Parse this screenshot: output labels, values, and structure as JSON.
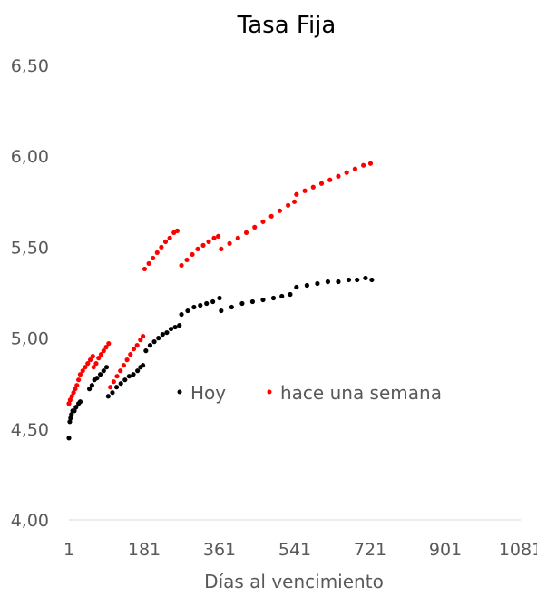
{
  "chart_data": {
    "type": "scatter",
    "title": "Tasa Fija",
    "xlabel": "Días al vencimiento",
    "ylabel": "",
    "xlim": [
      1,
      1081
    ],
    "ylim": [
      4.0,
      6.5
    ],
    "x_ticks": [
      1,
      181,
      361,
      541,
      721,
      901,
      1081
    ],
    "y_ticks": [
      4.0,
      4.5,
      5.0,
      5.5,
      6.0,
      6.5
    ],
    "x_tick_labels": [
      "1",
      "181",
      "361",
      "541",
      "721",
      "901",
      "1081"
    ],
    "y_tick_labels": [
      "4,00",
      "4,50",
      "5,00",
      "5,50",
      "6,00",
      "6,50"
    ],
    "grid": false,
    "legend_position": "center",
    "series": [
      {
        "name": "Hoy",
        "color": "#000000",
        "points": [
          [
            1,
            4.45
          ],
          [
            3,
            4.54
          ],
          [
            5,
            4.56
          ],
          [
            7,
            4.58
          ],
          [
            10,
            4.6
          ],
          [
            14,
            4.6
          ],
          [
            18,
            4.62
          ],
          [
            24,
            4.64
          ],
          [
            28,
            4.65
          ],
          [
            50,
            4.72
          ],
          [
            56,
            4.74
          ],
          [
            62,
            4.77
          ],
          [
            68,
            4.78
          ],
          [
            76,
            4.8
          ],
          [
            84,
            4.82
          ],
          [
            91,
            4.84
          ],
          [
            95,
            4.68
          ],
          [
            105,
            4.7
          ],
          [
            115,
            4.73
          ],
          [
            125,
            4.75
          ],
          [
            135,
            4.77
          ],
          [
            145,
            4.79
          ],
          [
            155,
            4.8
          ],
          [
            165,
            4.82
          ],
          [
            172,
            4.84
          ],
          [
            178,
            4.85
          ],
          [
            185,
            4.93
          ],
          [
            195,
            4.96
          ],
          [
            205,
            4.98
          ],
          [
            215,
            5.0
          ],
          [
            225,
            5.02
          ],
          [
            235,
            5.03
          ],
          [
            245,
            5.05
          ],
          [
            255,
            5.06
          ],
          [
            265,
            5.07
          ],
          [
            270,
            5.13
          ],
          [
            285,
            5.15
          ],
          [
            300,
            5.17
          ],
          [
            315,
            5.18
          ],
          [
            330,
            5.19
          ],
          [
            345,
            5.2
          ],
          [
            361,
            5.22
          ],
          [
            365,
            5.15
          ],
          [
            390,
            5.17
          ],
          [
            415,
            5.19
          ],
          [
            440,
            5.2
          ],
          [
            465,
            5.21
          ],
          [
            490,
            5.22
          ],
          [
            510,
            5.23
          ],
          [
            530,
            5.24
          ],
          [
            545,
            5.28
          ],
          [
            570,
            5.29
          ],
          [
            595,
            5.3
          ],
          [
            620,
            5.31
          ],
          [
            645,
            5.31
          ],
          [
            670,
            5.32
          ],
          [
            690,
            5.32
          ],
          [
            710,
            5.33
          ],
          [
            725,
            5.32
          ]
        ]
      },
      {
        "name": "hace una semana",
        "color": "#ff0000",
        "points": [
          [
            1,
            4.64
          ],
          [
            4,
            4.66
          ],
          [
            8,
            4.68
          ],
          [
            12,
            4.7
          ],
          [
            16,
            4.72
          ],
          [
            20,
            4.74
          ],
          [
            24,
            4.77
          ],
          [
            28,
            4.8
          ],
          [
            34,
            4.82
          ],
          [
            40,
            4.84
          ],
          [
            46,
            4.86
          ],
          [
            52,
            4.88
          ],
          [
            58,
            4.9
          ],
          [
            60,
            4.84
          ],
          [
            66,
            4.86
          ],
          [
            72,
            4.89
          ],
          [
            78,
            4.91
          ],
          [
            84,
            4.93
          ],
          [
            90,
            4.95
          ],
          [
            96,
            4.97
          ],
          [
            100,
            4.73
          ],
          [
            108,
            4.76
          ],
          [
            116,
            4.79
          ],
          [
            124,
            4.82
          ],
          [
            132,
            4.85
          ],
          [
            140,
            4.88
          ],
          [
            148,
            4.91
          ],
          [
            156,
            4.94
          ],
          [
            164,
            4.96
          ],
          [
            172,
            4.99
          ],
          [
            178,
            5.01
          ],
          [
            182,
            5.38
          ],
          [
            192,
            5.41
          ],
          [
            202,
            5.44
          ],
          [
            212,
            5.47
          ],
          [
            222,
            5.5
          ],
          [
            232,
            5.53
          ],
          [
            242,
            5.55
          ],
          [
            252,
            5.58
          ],
          [
            260,
            5.59
          ],
          [
            270,
            5.4
          ],
          [
            283,
            5.43
          ],
          [
            296,
            5.46
          ],
          [
            309,
            5.49
          ],
          [
            322,
            5.51
          ],
          [
            335,
            5.53
          ],
          [
            348,
            5.55
          ],
          [
            358,
            5.56
          ],
          [
            365,
            5.49
          ],
          [
            385,
            5.52
          ],
          [
            405,
            5.55
          ],
          [
            425,
            5.58
          ],
          [
            445,
            5.61
          ],
          [
            465,
            5.64
          ],
          [
            485,
            5.67
          ],
          [
            505,
            5.7
          ],
          [
            525,
            5.73
          ],
          [
            540,
            5.75
          ],
          [
            545,
            5.79
          ],
          [
            565,
            5.81
          ],
          [
            585,
            5.83
          ],
          [
            605,
            5.85
          ],
          [
            625,
            5.87
          ],
          [
            645,
            5.89
          ],
          [
            665,
            5.91
          ],
          [
            685,
            5.93
          ],
          [
            705,
            5.95
          ],
          [
            722,
            5.96
          ]
        ]
      }
    ]
  }
}
